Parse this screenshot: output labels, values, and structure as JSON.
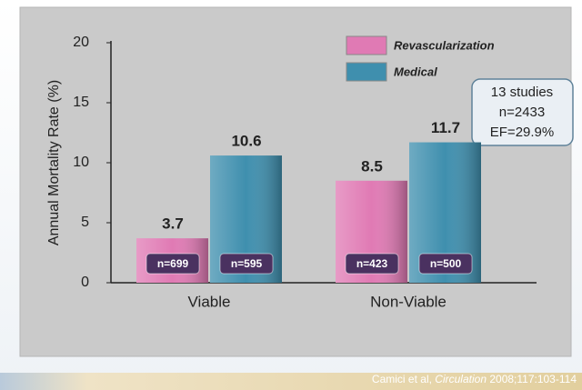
{
  "chart_data": {
    "type": "bar",
    "y_label": "Annual Mortality Rate (%)",
    "categories": [
      "Viable",
      "Non-Viable"
    ],
    "series": [
      {
        "name": "Revascularization",
        "color": "#e07ab4",
        "values": [
          3.7,
          8.5
        ],
        "sample_labels": [
          "n=699",
          "n=423"
        ]
      },
      {
        "name": "Medical",
        "color": "#3f8fae",
        "values": [
          10.6,
          11.7
        ],
        "sample_labels": [
          "n=595",
          "n=500"
        ]
      }
    ],
    "ylim": [
      0,
      20
    ],
    "yticks": [
      0,
      5,
      10,
      15,
      20
    ],
    "grid": false,
    "annotation": [
      "13 studies",
      "n=2433",
      "EF=29.9%"
    ],
    "citation": {
      "authors": "Camici et al,",
      "journal": "Circulation",
      "ref": "2008;117:103-114"
    }
  }
}
